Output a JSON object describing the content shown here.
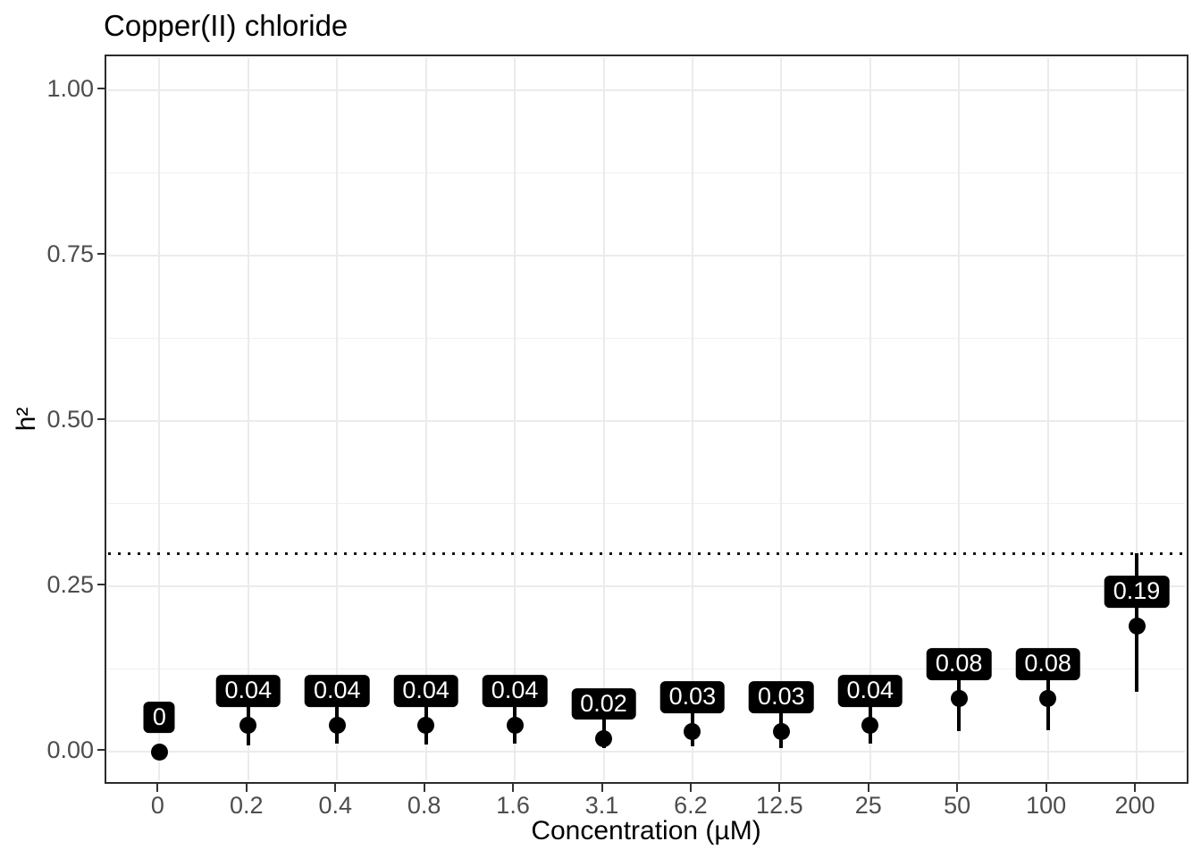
{
  "chart_data": {
    "type": "scatter",
    "title": "Copper(II) chloride",
    "xlabel": "Concentration (µM)",
    "ylabel": "h²",
    "categories": [
      "0",
      "0.2",
      "0.4",
      "0.8",
      "1.6",
      "3.1",
      "6.2",
      "12.5",
      "25",
      "50",
      "100",
      "200"
    ],
    "values": [
      0,
      0.04,
      0.04,
      0.04,
      0.04,
      0.02,
      0.03,
      0.03,
      0.04,
      0.08,
      0.08,
      0.19
    ],
    "point_labels": [
      "0",
      "0.04",
      "0.04",
      "0.04",
      "0.04",
      "0.02",
      "0.03",
      "0.03",
      "0.04",
      "0.08",
      "0.08",
      "0.19"
    ],
    "error_low": [
      0,
      0.01,
      0.012,
      0.011,
      0.012,
      0.005,
      0.008,
      0.005,
      0.012,
      0.031,
      0.032,
      0.09
    ],
    "error_high": [
      0,
      0.075,
      0.075,
      0.072,
      0.075,
      0.055,
      0.06,
      0.06,
      0.075,
      0.135,
      0.135,
      0.3
    ],
    "reference_line_y": 0.3,
    "reference_line_style": "dotted",
    "y_ticks": [
      "0.00",
      "0.25",
      "0.50",
      "0.75",
      "1.00"
    ],
    "y_tick_values": [
      0,
      0.25,
      0.5,
      0.75,
      1.0
    ],
    "y_minor_values": [
      0.125,
      0.375,
      0.625,
      0.875
    ],
    "ylim": [
      -0.05,
      1.05
    ],
    "grid": "on",
    "legend": "none",
    "colors": {
      "point": "#000000",
      "error_bar": "#000000",
      "label_bg": "#000000",
      "label_text": "#ffffff",
      "grid_major": "#ebebeb",
      "grid_minor": "#f0f0f0",
      "panel_border": "#2b2b2b",
      "tick_text": "#4d4d4d",
      "title_text": "#000000",
      "reference_line": "#141414",
      "background": "#ffffff"
    }
  }
}
